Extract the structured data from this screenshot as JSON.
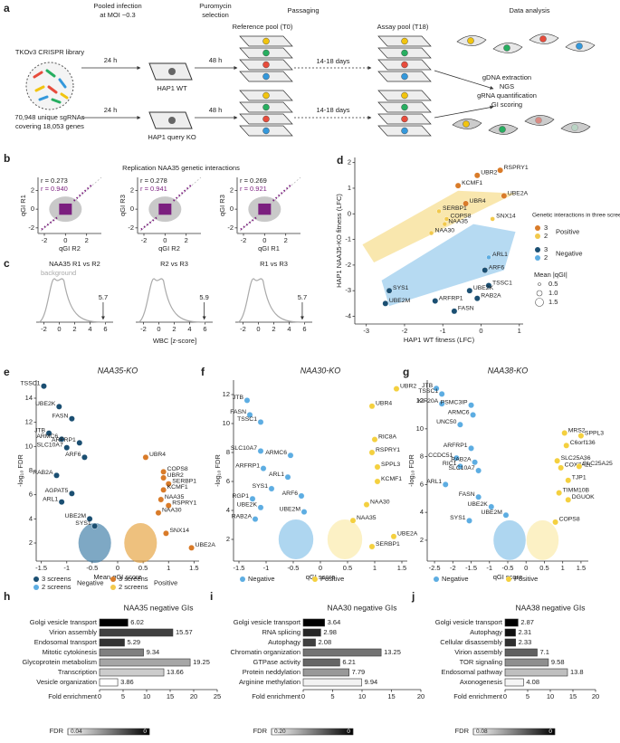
{
  "panel_letters": [
    "a",
    "b",
    "c",
    "d",
    "e",
    "f",
    "g",
    "h",
    "i",
    "j"
  ],
  "schematic": {
    "labels": [
      "Pooled infection",
      "at MOI ~0.3",
      "Puromycin",
      "selection",
      "Passaging",
      "Data analysis",
      "Reference pool (T0)",
      "Assay pool (T18)",
      "TKOv3 CRISPR library",
      "24 h",
      "48 h",
      "HAP1 WT",
      "14-18 days",
      "gDNA extraction",
      "NGS",
      "gRNA quantification",
      "GI scoring",
      "70,948 unique sgRNAs",
      "covering 18,053 genes",
      "24 h",
      "48 h",
      "HAP1 query KO",
      "14-18 days"
    ]
  },
  "chart_data": [
    {
      "type": "scatter",
      "title": "Replication NAA35 genetic interactions",
      "subplots": [
        {
          "r_all": "r = 0.273",
          "r_gi": "r = 0.940",
          "xlabel": "qGI R2",
          "ylabel": "qGI R1"
        },
        {
          "r_all": "r = 0.278",
          "r_gi": "r = 0.941",
          "xlabel": "qGI R2",
          "ylabel": "qGI R3"
        },
        {
          "r_all": "r = 0.269",
          "r_gi": "r = 0.921",
          "xlabel": "qGI R1",
          "ylabel": "qGI R3"
        }
      ],
      "xlim": [
        -2.6,
        3.4
      ],
      "ylim": [
        -2.6,
        3.4
      ],
      "xticks": [
        -2,
        0,
        2
      ],
      "yticks": [
        -2,
        0,
        2
      ],
      "color": "#7b1f7f"
    },
    {
      "type": "line",
      "annotation": "background",
      "xlabel": "WBC [z-score]",
      "subplots": [
        {
          "title": "NAA35 R1 vs R2",
          "value": 5.7
        },
        {
          "title": "R2 vs R3",
          "value": 5.9
        },
        {
          "title": "R1 vs R3",
          "value": 5.7
        }
      ],
      "xlim": [
        -3,
        7
      ],
      "xticks": [
        -2,
        0,
        2,
        4,
        6
      ]
    },
    {
      "type": "scatter",
      "xlabel": "HAP1 WT fitness (LFC)",
      "ylabel": "HAP1 NAA35-KO fitness (LFC)",
      "xlim": [
        -3.3,
        1.1
      ],
      "ylim": [
        -4.3,
        2.2
      ],
      "xticks": [
        -3,
        -2,
        -1,
        0,
        1
      ],
      "yticks": [
        -4,
        -3,
        -2,
        -1,
        0,
        1,
        2
      ],
      "legend_title": "Genetic interactions in three screens:",
      "size_title": "Mean |qGI|",
      "sizes": [
        {
          "value": 0.5,
          "label": "0.5"
        },
        {
          "value": 1,
          "label": "1.0"
        },
        {
          "value": 1.5,
          "label": "1.5"
        }
      ],
      "series": [
        {
          "name": "Positive",
          "screens": 3,
          "color": "#d97b29",
          "points": [
            {
              "label": "UBR2",
              "x": -0.1,
              "y": 1.5
            },
            {
              "label": "RSPRY1",
              "x": 0.5,
              "y": 1.7
            },
            {
              "label": "KCMF1",
              "x": -0.6,
              "y": 1.1
            },
            {
              "label": "UBE2A",
              "x": 0.6,
              "y": 0.7
            },
            {
              "label": "UBR4",
              "x": -0.4,
              "y": 0.4
            }
          ]
        },
        {
          "name": "Positive",
          "screens": 2,
          "color": "#f2c94c",
          "points": [
            {
              "label": "SERBP1",
              "x": -1.1,
              "y": 0.1
            },
            {
              "label": "COPS8",
              "x": -0.9,
              "y": -0.2
            },
            {
              "label": "NAA35",
              "x": -0.95,
              "y": -0.4
            },
            {
              "label": "SNX14",
              "x": 0.3,
              "y": -0.2
            },
            {
              "label": "NAA30",
              "x": -1.3,
              "y": -0.75
            }
          ]
        },
        {
          "name": "Negative",
          "screens": 3,
          "color": "#1b4f72",
          "points": [
            {
              "label": "ARF6",
              "x": 0.1,
              "y": -2.2
            },
            {
              "label": "TSSC1",
              "x": 0.2,
              "y": -2.8
            },
            {
              "label": "UBE2K",
              "x": -0.3,
              "y": -3.0
            },
            {
              "label": "RAB2A",
              "x": -0.1,
              "y": -3.3
            },
            {
              "label": "SYS1",
              "x": -2.4,
              "y": -3.0
            },
            {
              "label": "UBE2M",
              "x": -2.5,
              "y": -3.5
            },
            {
              "label": "ARFRP1",
              "x": -1.2,
              "y": -3.4
            },
            {
              "label": "FASN",
              "x": -0.7,
              "y": -3.8
            }
          ]
        },
        {
          "name": "Negative",
          "screens": 2,
          "color": "#5dade2",
          "points": [
            {
              "label": "ARL1",
              "x": 0.2,
              "y": -1.7
            }
          ]
        }
      ]
    },
    {
      "type": "scatter",
      "title": "NAA35-KO",
      "xlabel": "Mean qGI score",
      "ylabel": "-log₁₀ FDR",
      "xlim": [
        -1.6,
        1.6
      ],
      "ylim": [
        0.5,
        15.5
      ],
      "xticks": [
        -1.5,
        -1,
        -0.5,
        0,
        0.5,
        1,
        1.5
      ],
      "yticks": [
        2,
        4,
        6,
        8,
        10,
        12,
        14
      ],
      "series": [
        {
          "name": "Negative",
          "legend_label": "3 screens",
          "color": "#1b4f72",
          "points": [
            {
              "label": "TSSC1",
              "x": -1.45,
              "y": 15
            },
            {
              "label": "UBE2K",
              "x": -1.15,
              "y": 13.3
            },
            {
              "label": "FASN",
              "x": -0.9,
              "y": 12.3
            },
            {
              "label": "JTB",
              "x": -1.35,
              "y": 11.1
            },
            {
              "label": "ARMC6",
              "x": -1.1,
              "y": 10.6
            },
            {
              "label": "ARFRP1",
              "x": -0.75,
              "y": 10.3
            },
            {
              "label": "SLC10A7",
              "x": -1.0,
              "y": 9.9
            },
            {
              "label": "ARF6",
              "x": -0.65,
              "y": 9.1
            },
            {
              "label": "RAB2A",
              "x": -1.2,
              "y": 7.6
            },
            {
              "label": "AGPAT5",
              "x": -0.9,
              "y": 6.1
            },
            {
              "label": "ARL1",
              "x": -1.1,
              "y": 5.4
            },
            {
              "label": "UBE2M",
              "x": -0.55,
              "y": 4.0
            },
            {
              "label": "SYS1",
              "x": -0.45,
              "y": 3.4
            }
          ]
        },
        {
          "name": "Negative",
          "legend_label": "2 screens",
          "color": "#5dade2",
          "points": []
        },
        {
          "name": "Positive",
          "legend_label": "3 screens",
          "color": "#d97b29",
          "points": [
            {
              "label": "UBR4",
              "x": 0.55,
              "y": 9.1
            },
            {
              "label": "COPS8",
              "x": 0.9,
              "y": 7.9
            },
            {
              "label": "UBR2",
              "x": 0.9,
              "y": 7.4
            },
            {
              "label": "SERBP1",
              "x": 1.0,
              "y": 6.9
            },
            {
              "label": "KCMF1",
              "x": 0.9,
              "y": 6.4
            },
            {
              "label": "NAA35",
              "x": 0.85,
              "y": 5.6
            },
            {
              "label": "RSPRY1",
              "x": 1.0,
              "y": 5.1
            },
            {
              "label": "NAA30",
              "x": 0.8,
              "y": 4.5
            },
            {
              "label": "SNX14",
              "x": 0.95,
              "y": 2.8
            },
            {
              "label": "UBE2A",
              "x": 1.45,
              "y": 1.6
            }
          ]
        },
        {
          "name": "Positive",
          "legend_label": "2 screens",
          "color": "#f2c94c",
          "points": []
        }
      ]
    },
    {
      "type": "scatter",
      "title": "NAA30-KO",
      "xlabel": "qGI score",
      "ylabel": "-log₁₀ FDR",
      "xlim": [
        -1.6,
        1.6
      ],
      "ylim": [
        0.5,
        13
      ],
      "xticks": [
        -1.5,
        -1,
        -0.5,
        0,
        0.5,
        1,
        1.5
      ],
      "yticks": [
        2,
        4,
        6,
        8,
        10,
        12
      ],
      "series": [
        {
          "name": "Negative",
          "color": "#5dade2",
          "points": [
            {
              "label": "JTB",
              "x": -1.35,
              "y": 11.6
            },
            {
              "label": "FASN",
              "x": -1.3,
              "y": 10.6
            },
            {
              "label": "TSSC1",
              "x": -1.1,
              "y": 10.1
            },
            {
              "label": "SLC10A7",
              "x": -1.1,
              "y": 8.1
            },
            {
              "label": "ARMC6",
              "x": -0.55,
              "y": 7.8
            },
            {
              "label": "ARFRP1",
              "x": -1.05,
              "y": 6.9
            },
            {
              "label": "ARL1",
              "x": -0.6,
              "y": 6.3
            },
            {
              "label": "SYS1",
              "x": -0.9,
              "y": 5.5
            },
            {
              "label": "ARF6",
              "x": -0.35,
              "y": 5.0
            },
            {
              "label": "RGP1",
              "x": -1.25,
              "y": 4.8
            },
            {
              "label": "UBE2K",
              "x": -1.1,
              "y": 4.2
            },
            {
              "label": "RAB2A",
              "x": -1.2,
              "y": 3.4
            },
            {
              "label": "UBE2M",
              "x": -0.3,
              "y": 3.9
            }
          ]
        },
        {
          "name": "Positive",
          "color": "#f4d03f",
          "points": [
            {
              "label": "UBR2",
              "x": 1.4,
              "y": 12.4
            },
            {
              "label": "UBR4",
              "x": 0.95,
              "y": 11.2
            },
            {
              "label": "RIC8A",
              "x": 1.0,
              "y": 8.9
            },
            {
              "label": "RSPRY1",
              "x": 0.95,
              "y": 8.0
            },
            {
              "label": "SPPL3",
              "x": 1.05,
              "y": 7.0
            },
            {
              "label": "KCMF1",
              "x": 1.05,
              "y": 6.0
            },
            {
              "label": "NAA30",
              "x": 0.85,
              "y": 4.4
            },
            {
              "label": "NAA35",
              "x": 0.6,
              "y": 3.3
            },
            {
              "label": "UBE2A",
              "x": 1.35,
              "y": 2.2
            },
            {
              "label": "SERBP1",
              "x": 0.95,
              "y": 1.5
            }
          ]
        }
      ]
    },
    {
      "type": "scatter",
      "title": "NAA38-KO",
      "xlabel": "qGI score",
      "ylabel": "-log₁₀ FDR",
      "xlim": [
        -2.7,
        1.7
      ],
      "ylim": [
        0.5,
        13.5
      ],
      "xticks": [
        -2.5,
        -2,
        -1.5,
        -1,
        -0.5,
        0,
        0.5,
        1,
        1.5
      ],
      "yticks": [
        2,
        4,
        6,
        8,
        10,
        12
      ],
      "series": [
        {
          "name": "Negative",
          "color": "#5dade2",
          "points": [
            {
              "label": "JTB",
              "x": -2.45,
              "y": 12.9
            },
            {
              "label": "TSSC1",
              "x": -2.3,
              "y": 12.5
            },
            {
              "label": "KIF20A",
              "x": -2.3,
              "y": 11.8
            },
            {
              "label": "PSMC3IP",
              "x": -1.5,
              "y": 11.7
            },
            {
              "label": "ARMC6",
              "x": -1.45,
              "y": 11.0
            },
            {
              "label": "UNC50",
              "x": -1.8,
              "y": 10.3
            },
            {
              "label": "ARFRP1",
              "x": -1.5,
              "y": 8.6
            },
            {
              "label": "CCDC51",
              "x": -1.9,
              "y": 7.9
            },
            {
              "label": "RIC1",
              "x": -1.8,
              "y": 7.3
            },
            {
              "label": "RAB2A",
              "x": -1.4,
              "y": 7.6
            },
            {
              "label": "SLC10A7",
              "x": -1.3,
              "y": 7.0
            },
            {
              "label": "ARL1",
              "x": -2.2,
              "y": 6.0
            },
            {
              "label": "FASN",
              "x": -1.3,
              "y": 5.1
            },
            {
              "label": "UBE2K",
              "x": -0.95,
              "y": 4.4
            },
            {
              "label": "UBE2M",
              "x": -0.55,
              "y": 3.8
            },
            {
              "label": "SYS1",
              "x": -1.55,
              "y": 3.4
            }
          ]
        },
        {
          "name": "Positive",
          "color": "#f4d03f",
          "points": [
            {
              "label": "MRS2",
              "x": 1.05,
              "y": 9.7
            },
            {
              "label": "SPPL3",
              "x": 1.5,
              "y": 9.5
            },
            {
              "label": "C6orf136",
              "x": 1.1,
              "y": 8.8
            },
            {
              "label": "SLC25A36",
              "x": 0.85,
              "y": 7.7
            },
            {
              "label": "COX7A2L",
              "x": 0.95,
              "y": 7.2
            },
            {
              "label": "SLC25A25",
              "x": 1.45,
              "y": 7.3
            },
            {
              "label": "TJP1",
              "x": 1.15,
              "y": 6.3
            },
            {
              "label": "TIMM10B",
              "x": 0.9,
              "y": 5.4
            },
            {
              "label": "DGUOK",
              "x": 1.15,
              "y": 4.9
            },
            {
              "label": "COPS8",
              "x": 0.8,
              "y": 3.3
            }
          ]
        }
      ]
    },
    {
      "type": "bar",
      "title": "NAA35 negative GIs",
      "xlabel": "Fold enrichment",
      "colorbar_label": "FDR",
      "colorbar": [
        0.04,
        0
      ],
      "categories": [
        "Golgi vesicle transport",
        "Virion assembly",
        "Endosomal transport",
        "Mitotic cytokinesis",
        "Glycoprotein metabolism",
        "Transcription",
        "Vesicle organization"
      ],
      "values": [
        6.02,
        15.57,
        5.29,
        9.34,
        19.25,
        13.66,
        3.86
      ],
      "fdr": [
        0.0,
        0.01,
        0.008,
        0.02,
        0.026,
        0.032,
        0.04
      ],
      "xlim": [
        0,
        25
      ],
      "xticks": [
        0,
        5,
        10,
        15,
        20,
        25
      ]
    },
    {
      "type": "bar",
      "title": "NAA30 negative GIs",
      "xlabel": "Fold enrichment",
      "colorbar_label": "FDR",
      "colorbar": [
        {
          "value": 0.2,
          "label": "0.20"
        },
        0
      ],
      "categories": [
        "Golgi vesicle transport",
        "RNA splicing",
        "Autophagy",
        "Chromatin organization",
        "GTPase activity",
        "Protein neddylation",
        "Arginine methylation"
      ],
      "values": [
        3.64,
        2.98,
        2.08,
        13.25,
        6.21,
        7.79,
        9.94
      ],
      "fdr": [
        0.0,
        0.03,
        0.05,
        0.09,
        0.08,
        0.12,
        0.19
      ],
      "xlim": [
        0,
        20
      ],
      "xticks": [
        0,
        5,
        10,
        15,
        20
      ]
    },
    {
      "type": "bar",
      "title": "NAA38 negative GIs",
      "xlabel": "Fold enrichment",
      "colorbar_label": "FDR",
      "colorbar": [
        0.08,
        0
      ],
      "categories": [
        "Golgi vesicle transport",
        "Autophagy",
        "Cellular disassembly",
        "Virion assembly",
        "TOR signaling",
        "Endosomal pathway",
        "Axonogenesis"
      ],
      "values": [
        2.87,
        2.31,
        2.33,
        7.1,
        9.58,
        13.8,
        4.08
      ],
      "fdr": [
        0.0,
        0.005,
        0.015,
        0.03,
        0.045,
        0.06,
        0.077
      ],
      "xlim": [
        0,
        20
      ],
      "xticks": [
        0,
        5,
        10,
        15,
        20
      ]
    }
  ]
}
